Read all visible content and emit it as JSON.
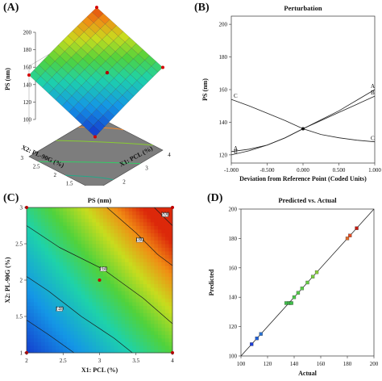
{
  "panels": [
    {
      "letter": "(A)"
    },
    {
      "letter": "(B)"
    },
    {
      "letter": "(C)"
    },
    {
      "letter": "(D)"
    }
  ],
  "chart_data": [
    {
      "type": "surface3d",
      "title": "",
      "zlabel": "PS (nm)",
      "x1label": "X1: PCL (%)",
      "x2label": "X2: PL-90G (%)",
      "x1ticks": [
        "1",
        "2",
        "3",
        "4"
      ],
      "x2ticks": [
        "1",
        "1.5",
        "2",
        "2.5",
        "3"
      ],
      "zticks": [
        "100",
        "120",
        "140",
        "160",
        "180",
        "200"
      ],
      "x1range": [
        1,
        4
      ],
      "x2range": [
        1,
        3
      ],
      "zrange": [
        100,
        200
      ],
      "corners": [
        {
          "x1": 1,
          "x2": 1,
          "z": 102
        },
        {
          "x1": 4,
          "x2": 1,
          "z": 152
        },
        {
          "x1": 1,
          "x2": 3,
          "z": 150
        },
        {
          "x1": 4,
          "x2": 3,
          "z": 197
        }
      ],
      "design_point": {
        "x1": 3,
        "x2": 2,
        "z": 137
      }
    },
    {
      "type": "line",
      "title": "Perturbation",
      "xlabel": "Deviation from Reference Point (Coded Units)",
      "ylabel": "PS (nm)",
      "xticks": [
        "-1.000",
        "-0.500",
        "0.000",
        "0.500",
        "1.000"
      ],
      "yticks": [
        "120",
        "140",
        "160",
        "180",
        "200"
      ],
      "xlim": [
        -1,
        1
      ],
      "ylim": [
        115,
        205
      ],
      "x": [
        -1,
        -0.75,
        -0.5,
        -0.25,
        0,
        0.25,
        0.5,
        0.75,
        1
      ],
      "series": [
        {
          "name": "A",
          "values": [
            122,
            123.5,
            126,
            130.5,
            136,
            141.5,
            147,
            153.5,
            160
          ]
        },
        {
          "name": "B",
          "values": [
            120,
            122.5,
            126,
            130.5,
            136,
            141,
            146,
            151,
            156
          ]
        },
        {
          "name": "C",
          "values": [
            154,
            150,
            145.5,
            141,
            136,
            132.5,
            130.5,
            129,
            128
          ]
        }
      ],
      "reference_point": {
        "x": 0,
        "y": 136
      }
    },
    {
      "type": "contour",
      "title": "PS (nm)",
      "xlabel": "X1: PCL (%)",
      "ylabel": "X2: PL-90G (%)",
      "xticks": [
        "2",
        "2.5",
        "3",
        "3.5",
        "4"
      ],
      "yticks": [
        "1",
        "1.5",
        "2",
        "2.5",
        "3"
      ],
      "xlim": [
        2,
        4
      ],
      "ylim": [
        1,
        3
      ],
      "levels": [
        {
          "label": "140",
          "points": [
            [
              2.0,
              1.45
            ],
            [
              2.3,
              1.25
            ],
            [
              2.65,
              1.0
            ]
          ]
        },
        {
          "label": "160",
          "points": [
            [
              2.0,
              2.05
            ],
            [
              2.3,
              1.85
            ],
            [
              2.75,
              1.5
            ],
            [
              3.2,
              1.2
            ],
            [
              3.45,
              1.0
            ]
          ]
        },
        {
          "label": "180",
          "points": [
            [
              2.0,
              2.75
            ],
            [
              2.45,
              2.45
            ],
            [
              3.05,
              2.15
            ],
            [
              3.6,
              1.75
            ],
            [
              4.0,
              1.4
            ]
          ]
        },
        {
          "label": "200",
          "points": [
            [
              3.1,
              3.0
            ],
            [
              3.5,
              2.65
            ],
            [
              3.8,
              2.35
            ],
            [
              4.0,
              2.2
            ]
          ]
        },
        {
          "label": "220",
          "points": [
            [
              3.75,
              3.0
            ],
            [
              3.9,
              2.85
            ],
            [
              4.0,
              2.75
            ]
          ]
        }
      ],
      "label_positions": [
        {
          "label": "140",
          "x": 2.45,
          "y": 1.6
        },
        {
          "label": "160",
          "x": 3.05,
          "y": 2.15
        },
        {
          "label": "180",
          "x": 3.55,
          "y": 2.55
        },
        {
          "label": "200",
          "x": 3.9,
          "y": 2.9
        }
      ],
      "design_point": {
        "x": 3,
        "y": 2
      },
      "corner_points": [
        {
          "x": 2,
          "y": 1
        },
        {
          "x": 2,
          "y": 3
        },
        {
          "x": 4,
          "y": 1
        },
        {
          "x": 4,
          "y": 3
        }
      ]
    },
    {
      "type": "scatter",
      "title": "Predicted vs. Actual",
      "xlabel": "Actual",
      "ylabel": "Predicted",
      "xticks": [
        "100",
        "120",
        "140",
        "160",
        "180",
        "200"
      ],
      "yticks": [
        "100",
        "120",
        "140",
        "160",
        "180",
        "200"
      ],
      "xlim": [
        100,
        200
      ],
      "ylim": [
        100,
        200
      ],
      "points": [
        {
          "x": 108,
          "y": 108,
          "color": "#1e3fd8"
        },
        {
          "x": 112,
          "y": 112,
          "color": "#1e5fd8"
        },
        {
          "x": 115,
          "y": 115,
          "color": "#2a72d0"
        },
        {
          "x": 134,
          "y": 136,
          "color": "#3fbf4a"
        },
        {
          "x": 136,
          "y": 136,
          "color": "#3fbf4a"
        },
        {
          "x": 137,
          "y": 136,
          "color": "#3fbf4a"
        },
        {
          "x": 138,
          "y": 136,
          "color": "#3fbf4a"
        },
        {
          "x": 140,
          "y": 140,
          "color": "#4cc84a"
        },
        {
          "x": 143,
          "y": 143,
          "color": "#52c848"
        },
        {
          "x": 146,
          "y": 146,
          "color": "#5acb48"
        },
        {
          "x": 150,
          "y": 150,
          "color": "#66cc44"
        },
        {
          "x": 154,
          "y": 154,
          "color": "#78cc40"
        },
        {
          "x": 157,
          "y": 157,
          "color": "#88cc3a"
        },
        {
          "x": 180,
          "y": 180,
          "color": "#e06a2a"
        },
        {
          "x": 182,
          "y": 182,
          "color": "#e24a22"
        },
        {
          "x": 187,
          "y": 187,
          "color": "#c41a10"
        }
      ]
    }
  ]
}
